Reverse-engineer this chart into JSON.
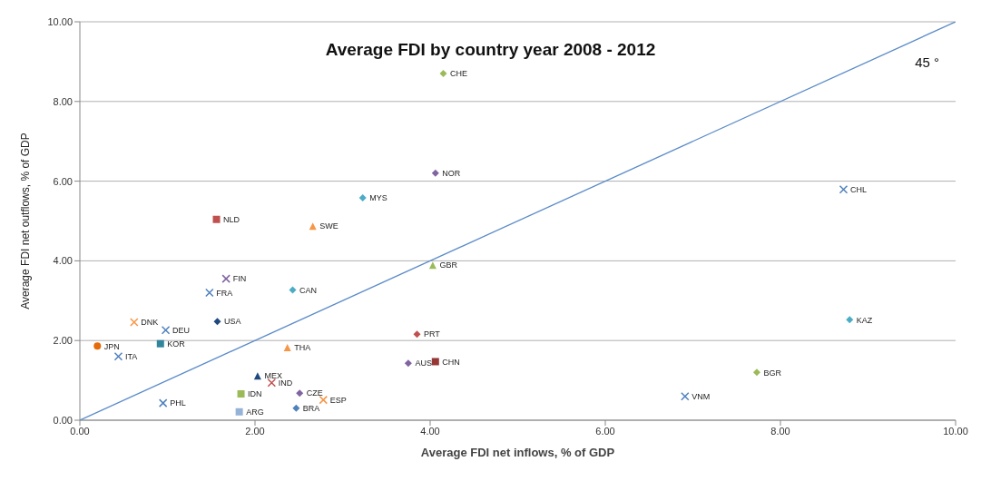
{
  "chart_data": {
    "type": "scatter",
    "title": "Average FDI by country year 2008 - 2012",
    "xlabel": "Average FDI net inflows, % of GDP",
    "ylabel": "Average FDI net outflows, % of GDP",
    "xlim": [
      0,
      10
    ],
    "ylim": [
      0,
      10
    ],
    "xticks": [
      {
        "value": 0,
        "label": "0.00"
      },
      {
        "value": 2,
        "label": "2.00"
      },
      {
        "value": 4,
        "label": "4.00"
      },
      {
        "value": 6,
        "label": "6.00"
      },
      {
        "value": 8,
        "label": "8.00"
      },
      {
        "value": 10,
        "label": "10.00"
      }
    ],
    "yticks": [
      {
        "value": 0,
        "label": "0.00"
      },
      {
        "value": 2,
        "label": "2.00"
      },
      {
        "value": 4,
        "label": "4.00"
      },
      {
        "value": 6,
        "label": "6.00"
      },
      {
        "value": 8,
        "label": "8.00"
      },
      {
        "value": 10,
        "label": "10.00"
      }
    ],
    "grid": "y",
    "marker": "diamond",
    "annotations": [
      "45 °"
    ],
    "series": [
      {
        "type": "line",
        "color": "#5b8cc8",
        "x": [
          0,
          10
        ],
        "values": [
          0,
          10
        ],
        "marker": "none"
      },
      {
        "name": "CHE",
        "color": "#9bbb59",
        "x": [
          4.15
        ],
        "values": [
          8.7
        ]
      },
      {
        "name": "NOR",
        "color": "#8064a2",
        "x": [
          4.06
        ],
        "values": [
          6.2
        ]
      },
      {
        "name": "MYS",
        "color": "#4bacc6",
        "x": [
          3.23
        ],
        "values": [
          5.58
        ]
      },
      {
        "name": "NLD",
        "color": "#c0504d",
        "x": [
          1.56
        ],
        "values": [
          5.04
        ],
        "marker": "square"
      },
      {
        "name": "SWE",
        "color": "#f79646",
        "x": [
          2.66
        ],
        "values": [
          4.87
        ],
        "marker": "triangle"
      },
      {
        "name": "GBR",
        "color": "#9bbb59",
        "x": [
          4.03
        ],
        "values": [
          3.89
        ],
        "marker": "triangle"
      },
      {
        "name": "FIN",
        "color": "#8064a2",
        "x": [
          1.67
        ],
        "values": [
          3.55
        ],
        "marker": "cross"
      },
      {
        "name": "FRA",
        "color": "#4f81bd",
        "x": [
          1.48
        ],
        "values": [
          3.2
        ],
        "marker": "cross"
      },
      {
        "name": "CAN",
        "color": "#4bacc6",
        "x": [
          2.43
        ],
        "values": [
          3.27
        ]
      },
      {
        "name": "USA",
        "color": "#1f497d",
        "x": [
          1.57
        ],
        "values": [
          2.48
        ]
      },
      {
        "name": "DNK",
        "color": "#f79646",
        "x": [
          0.62
        ],
        "values": [
          2.46
        ],
        "marker": "cross"
      },
      {
        "name": "DEU",
        "color": "#4f81bd",
        "x": [
          0.98
        ],
        "values": [
          2.26
        ],
        "marker": "cross"
      },
      {
        "name": "JPN",
        "color": "#e46c0a",
        "x": [
          0.2
        ],
        "values": [
          1.86
        ],
        "marker": "circle"
      },
      {
        "name": "KOR",
        "color": "#31859c",
        "x": [
          0.92
        ],
        "values": [
          1.92
        ],
        "marker": "square"
      },
      {
        "name": "ITA",
        "color": "#4f81bd",
        "x": [
          0.44
        ],
        "values": [
          1.6
        ],
        "marker": "cross"
      },
      {
        "name": "THA",
        "color": "#f79646",
        "x": [
          2.37
        ],
        "values": [
          1.82
        ],
        "marker": "triangle"
      },
      {
        "name": "PRT",
        "color": "#c0504d",
        "x": [
          3.85
        ],
        "values": [
          2.16
        ]
      },
      {
        "name": "AUS",
        "color": "#8064a2",
        "x": [
          3.75
        ],
        "values": [
          1.43
        ]
      },
      {
        "name": "CHN",
        "color": "#953735",
        "x": [
          4.06
        ],
        "values": [
          1.47
        ],
        "marker": "square"
      },
      {
        "name": "MEX",
        "color": "#1f497d",
        "x": [
          2.03
        ],
        "values": [
          1.11
        ],
        "marker": "triangle"
      },
      {
        "name": "IND",
        "color": "#c0504d",
        "x": [
          2.19
        ],
        "values": [
          0.94
        ],
        "marker": "cross"
      },
      {
        "name": "IDN",
        "color": "#9bbb59",
        "x": [
          1.84
        ],
        "values": [
          0.66
        ],
        "marker": "square"
      },
      {
        "name": "CZE",
        "color": "#8064a2",
        "x": [
          2.51
        ],
        "values": [
          0.68
        ]
      },
      {
        "name": "ESP",
        "color": "#f79646",
        "x": [
          2.78
        ],
        "values": [
          0.51
        ],
        "marker": "cross"
      },
      {
        "name": "BRA",
        "color": "#4f81bd",
        "x": [
          2.47
        ],
        "values": [
          0.3
        ]
      },
      {
        "name": "ARG",
        "color": "#95b3d7",
        "x": [
          1.82
        ],
        "values": [
          0.21
        ],
        "marker": "square"
      },
      {
        "name": "PHL",
        "color": "#4f81bd",
        "x": [
          0.95
        ],
        "values": [
          0.43
        ],
        "marker": "cross"
      },
      {
        "name": "VNM",
        "color": "#4f81bd",
        "x": [
          6.91
        ],
        "values": [
          0.6
        ],
        "marker": "cross"
      },
      {
        "name": "BGR",
        "color": "#9bbb59",
        "x": [
          7.73
        ],
        "values": [
          1.2
        ]
      },
      {
        "name": "KAZ",
        "color": "#4bacc6",
        "x": [
          8.79
        ],
        "values": [
          2.52
        ]
      },
      {
        "name": "CHL",
        "color": "#4f81bd",
        "x": [
          8.72
        ],
        "values": [
          5.79
        ],
        "marker": "cross"
      }
    ]
  }
}
